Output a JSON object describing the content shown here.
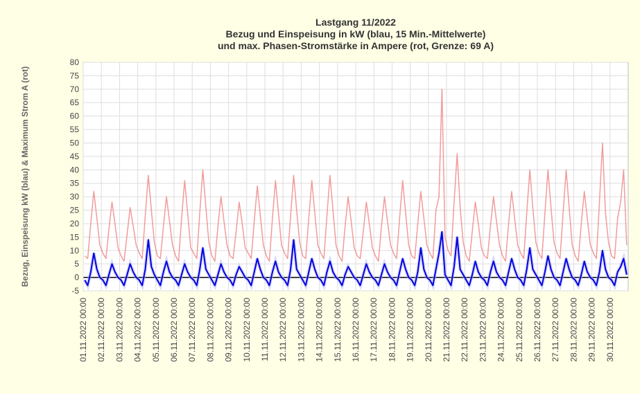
{
  "chart_data": {
    "type": "line",
    "title": "Lastgang 11/2022",
    "subtitle": [
      "Bezug und Einspeisung in kW (blau, 15 Min.-Mittelwerte)",
      "und max. Phasen-Stromstärke in Ampere (rot, Grenze: 69 A)"
    ],
    "ylabel": "Bezug, Einspeisung kW (blau) & Maximum Strom A (rot)",
    "ylim": [
      -5,
      80
    ],
    "yticks": [
      -5,
      0,
      5,
      10,
      15,
      20,
      25,
      30,
      35,
      40,
      45,
      50,
      55,
      60,
      65,
      70,
      75,
      80
    ],
    "grid": true,
    "categories": [
      "01.11.2022 00:00",
      null,
      null,
      null,
      null,
      null,
      "02.11.2022 00:00",
      null,
      null,
      null,
      null,
      null,
      "03.11.2022 00:00",
      null,
      null,
      null,
      null,
      null,
      "04.11.2022 00:00",
      null,
      null,
      null,
      null,
      null,
      "05.11.2022 00:00",
      null,
      null,
      null,
      null,
      null,
      "06.11.2022 00:00",
      null,
      null,
      null,
      null,
      null,
      "07.11.2022 00:00",
      null,
      null,
      null,
      null,
      null,
      "08.11.2022 00:00",
      null,
      null,
      null,
      null,
      null,
      "09.11.2022 00:00",
      null,
      null,
      null,
      null,
      null,
      "10.11.2022 00:00",
      null,
      null,
      null,
      null,
      null,
      "11.11.2022 00:00",
      null,
      null,
      null,
      null,
      null,
      "12.11.2022 00:00",
      null,
      null,
      null,
      null,
      null,
      "13.11.2022 00:00",
      null,
      null,
      null,
      null,
      null,
      "14.11.2022 00:00",
      null,
      null,
      null,
      null,
      null,
      "15.11.2022 00:00",
      null,
      null,
      null,
      null,
      null,
      "16.11.2022 00:00",
      null,
      null,
      null,
      null,
      null,
      "17.11.2022 00:00",
      null,
      null,
      null,
      null,
      null,
      "18.11.2022 00:00",
      null,
      null,
      null,
      null,
      null,
      "19.11.2022 00:00",
      null,
      null,
      null,
      null,
      null,
      "20.11.2022 00:00",
      null,
      null,
      null,
      null,
      null,
      "21.11.2022 00:00",
      null,
      null,
      null,
      null,
      null,
      "22.11.2022 00:00",
      null,
      null,
      null,
      null,
      null,
      "23.11.2022 00:00",
      null,
      null,
      null,
      null,
      null,
      "24.11.2022 00:00",
      null,
      null,
      null,
      null,
      null,
      "25.11.2022 00:00",
      null,
      null,
      null,
      null,
      null,
      "26.11.2022 00:00",
      null,
      null,
      null,
      null,
      null,
      "27.11.2022 00:00",
      null,
      null,
      null,
      null,
      null,
      "28.11.2022 00:00",
      null,
      null,
      null,
      null,
      null,
      "29.11.2022 00:00",
      null,
      null,
      null,
      null,
      null,
      "30.11.2022 00:00",
      null,
      null,
      null,
      null,
      null
    ],
    "series": [
      {
        "color": "#f08a8a",
        "values": [
          8,
          7,
          20,
          32,
          22,
          12,
          9,
          7,
          18,
          28,
          20,
          11,
          8,
          6,
          16,
          26,
          19,
          12,
          9,
          7,
          23,
          38,
          25,
          13,
          8,
          7,
          19,
          30,
          21,
          12,
          8,
          6,
          22,
          36,
          24,
          11,
          9,
          7,
          24,
          40,
          26,
          13,
          8,
          6,
          19,
          30,
          21,
          12,
          8,
          7,
          17,
          28,
          20,
          11,
          9,
          7,
          21,
          34,
          23,
          12,
          8,
          6,
          22,
          36,
          24,
          12,
          9,
          7,
          23,
          38,
          25,
          13,
          8,
          7,
          22,
          36,
          24,
          12,
          9,
          7,
          23,
          38,
          25,
          12,
          8,
          6,
          19,
          30,
          21,
          11,
          8,
          7,
          17,
          28,
          20,
          11,
          8,
          6,
          19,
          30,
          21,
          12,
          9,
          7,
          22,
          36,
          24,
          12,
          8,
          7,
          20,
          32,
          22,
          12,
          9,
          7,
          25,
          30,
          70,
          15,
          10,
          8,
          28,
          46,
          26,
          13,
          8,
          6,
          17,
          28,
          20,
          11,
          8,
          7,
          19,
          30,
          21,
          12,
          8,
          6,
          20,
          32,
          22,
          12,
          9,
          7,
          24,
          40,
          26,
          13,
          9,
          7,
          24,
          40,
          26,
          13,
          9,
          7,
          24,
          40,
          26,
          12,
          8,
          6,
          20,
          32,
          22,
          12,
          9,
          7,
          28,
          50,
          24,
          13,
          8,
          7,
          22,
          28,
          40,
          12
        ]
      },
      {
        "color": "#0000dd",
        "values": [
          -1,
          -3,
          2,
          9,
          3,
          0,
          -1,
          -3,
          1,
          5,
          2,
          0,
          -1,
          -3,
          1,
          5,
          2,
          0,
          -1,
          -3,
          3,
          14,
          4,
          1,
          -1,
          -3,
          2,
          6,
          2,
          0,
          -1,
          -3,
          1,
          5,
          2,
          0,
          -1,
          -3,
          3,
          11,
          3,
          1,
          -1,
          -3,
          1,
          5,
          2,
          0,
          -1,
          -3,
          1,
          4,
          2,
          0,
          -1,
          -3,
          2,
          7,
          3,
          0,
          -1,
          -3,
          2,
          6,
          2,
          0,
          -1,
          -3,
          3,
          14,
          3,
          1,
          -1,
          -3,
          2,
          7,
          3,
          0,
          -1,
          -3,
          2,
          6,
          2,
          0,
          -1,
          -3,
          1,
          4,
          2,
          0,
          -1,
          -3,
          1,
          5,
          2,
          0,
          -1,
          -3,
          1,
          5,
          2,
          0,
          -1,
          -3,
          2,
          7,
          3,
          0,
          -1,
          -3,
          2,
          11,
          3,
          0,
          -1,
          -3,
          3,
          9,
          17,
          1,
          -1,
          -3,
          4,
          15,
          3,
          1,
          -1,
          -3,
          1,
          6,
          2,
          0,
          -1,
          -3,
          2,
          6,
          2,
          0,
          -1,
          -3,
          2,
          7,
          3,
          0,
          -1,
          -3,
          3,
          11,
          3,
          1,
          -1,
          -3,
          2,
          8,
          3,
          0,
          -1,
          -3,
          2,
          7,
          3,
          0,
          -1,
          -3,
          1,
          6,
          2,
          0,
          -1,
          -3,
          2,
          10,
          3,
          0,
          -1,
          -3,
          2,
          4,
          7,
          1
        ]
      }
    ]
  }
}
